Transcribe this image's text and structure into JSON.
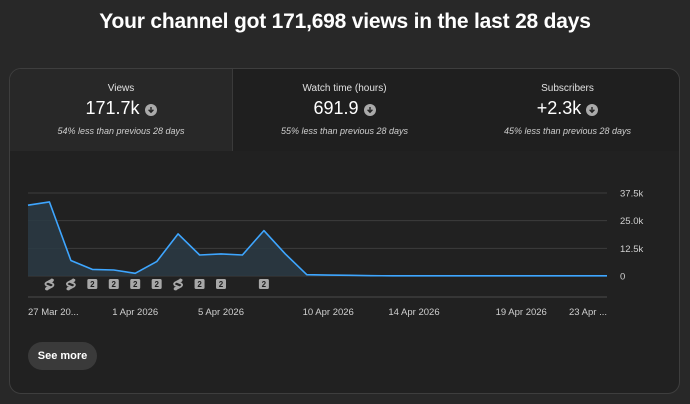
{
  "headline": "Your channel got 171,698 views in the last 28 days",
  "tabs": [
    {
      "label": "Views",
      "value": "171.7k",
      "compare": "54% less than previous 28 days",
      "active": true
    },
    {
      "label": "Watch time (hours)",
      "value": "691.9",
      "compare": "55% less than previous 28 days",
      "active": false
    },
    {
      "label": "Subscribers",
      "value": "+2.3k",
      "compare": "45% less than previous 28 days",
      "active": false
    }
  ],
  "see_more_label": "See more",
  "colors": {
    "line": "#3ea6ff",
    "background": "#212121",
    "grid": "#3d3d3d",
    "marker": "#a8a8a8"
  },
  "chart_data": {
    "type": "area",
    "series_metric": "Views",
    "x": [
      "27 Mar",
      "28 Mar",
      "29 Mar",
      "30 Mar",
      "31 Mar",
      "1 Apr",
      "2 Apr",
      "3 Apr",
      "4 Apr",
      "5 Apr",
      "6 Apr",
      "7 Apr",
      "8 Apr",
      "9 Apr",
      "10 Apr",
      "11 Apr",
      "12 Apr",
      "13 Apr",
      "14 Apr",
      "15 Apr",
      "16 Apr",
      "17 Apr",
      "18 Apr",
      "19 Apr",
      "20 Apr",
      "21 Apr",
      "22 Apr",
      "23 Apr"
    ],
    "values": [
      32000,
      33500,
      7000,
      3000,
      2700,
      1200,
      6500,
      19000,
      9500,
      10000,
      9500,
      20500,
      10000,
      600,
      400,
      300,
      150,
      100,
      100,
      100,
      100,
      100,
      100,
      100,
      100,
      100,
      100,
      100
    ],
    "x_tick_labels": [
      {
        "index": 0,
        "label": "27 Mar 20..."
      },
      {
        "index": 5,
        "label": "1 Apr 2026"
      },
      {
        "index": 9,
        "label": "5 Apr 2026"
      },
      {
        "index": 14,
        "label": "10 Apr 2026"
      },
      {
        "index": 18,
        "label": "14 Apr 2026"
      },
      {
        "index": 23,
        "label": "19 Apr 2026"
      },
      {
        "index": 27,
        "label": "23 Apr ..."
      }
    ],
    "y_ticks": [
      0,
      12500,
      25000,
      37500
    ],
    "y_tick_labels": [
      "0",
      "12.5k",
      "25.0k",
      "37.5k"
    ],
    "ylim": [
      0,
      37500
    ],
    "grid": true,
    "markers": [
      {
        "index": 1,
        "kind": "shorts"
      },
      {
        "index": 2,
        "kind": "shorts"
      },
      {
        "index": 3,
        "kind": "count",
        "label": "2"
      },
      {
        "index": 4,
        "kind": "count",
        "label": "2"
      },
      {
        "index": 5,
        "kind": "count",
        "label": "2"
      },
      {
        "index": 6,
        "kind": "count",
        "label": "2"
      },
      {
        "index": 7,
        "kind": "shorts"
      },
      {
        "index": 8,
        "kind": "count",
        "label": "2"
      },
      {
        "index": 9,
        "kind": "count",
        "label": "2"
      },
      {
        "index": 11,
        "kind": "count",
        "label": "2"
      }
    ]
  }
}
